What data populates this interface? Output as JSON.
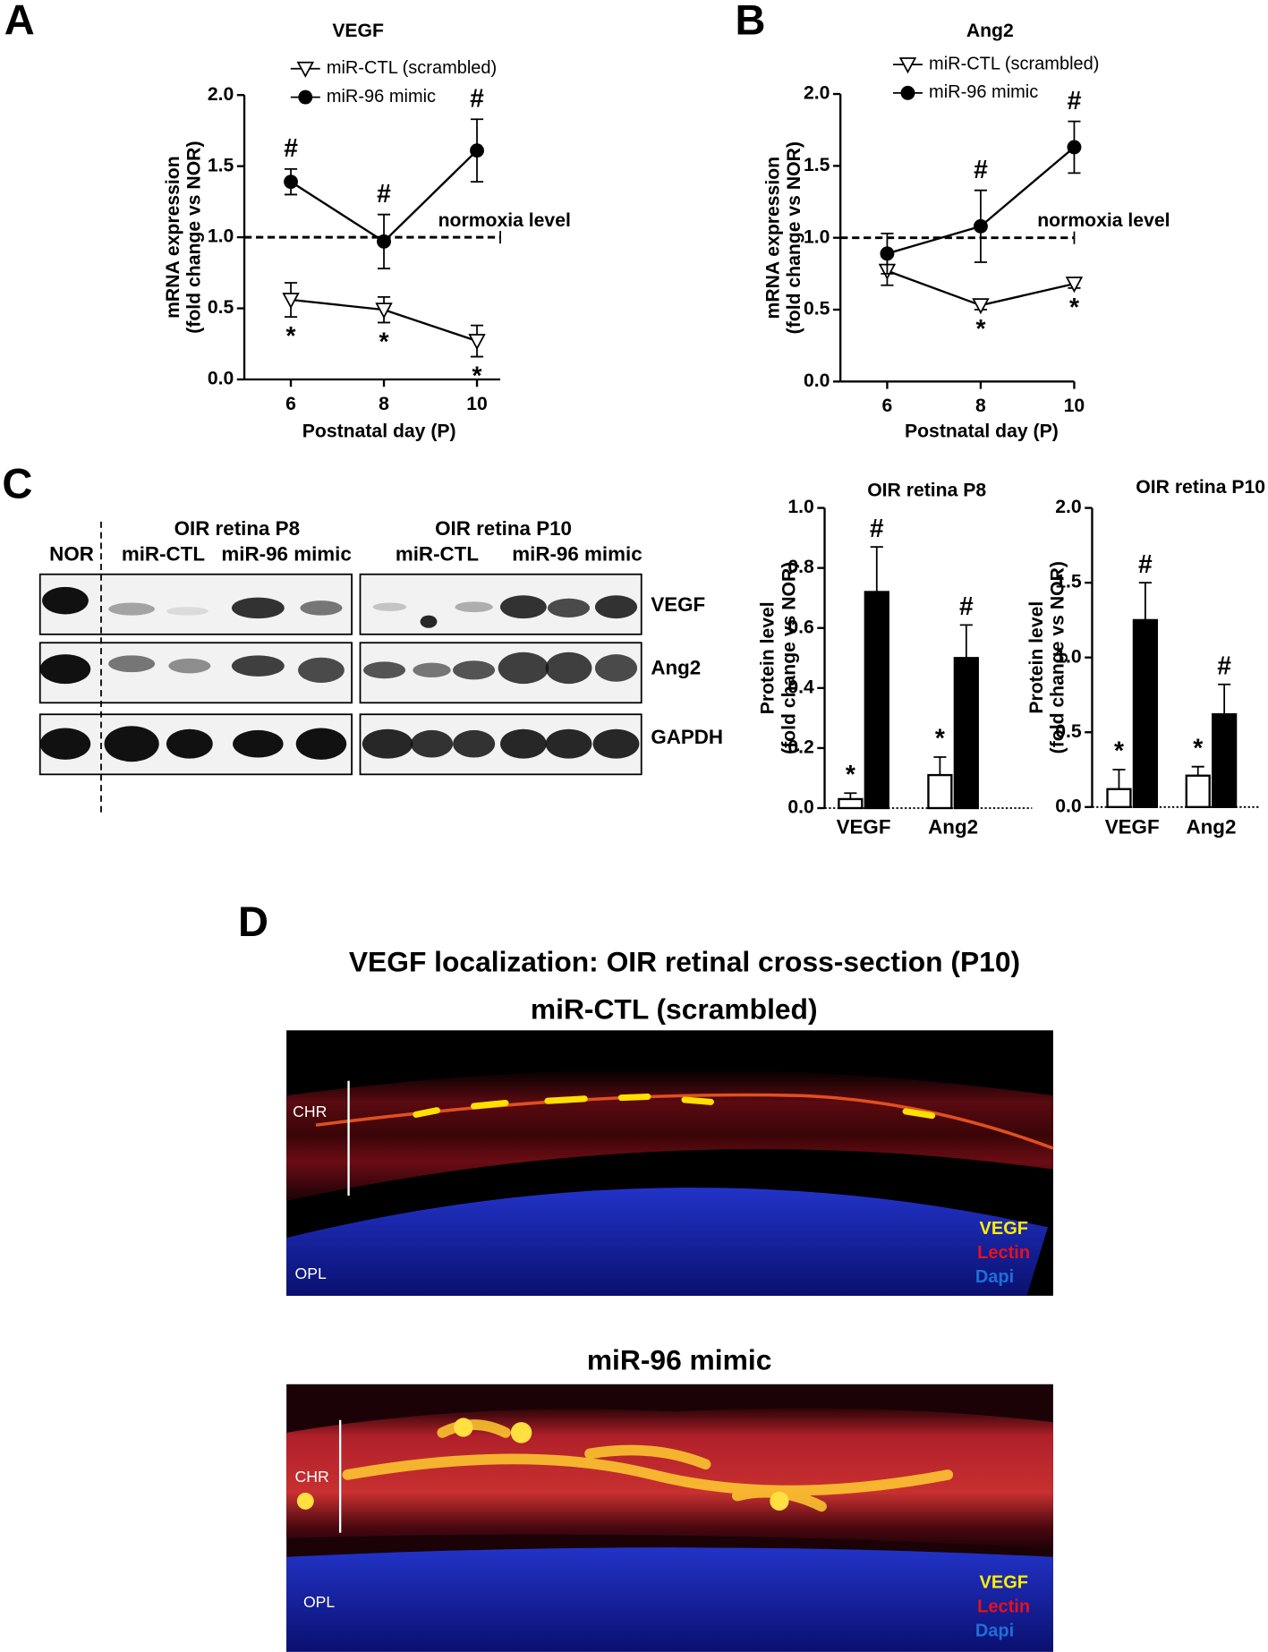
{
  "panel_labels": [
    "A",
    "B",
    "C",
    "D"
  ],
  "chart_data": [
    {
      "type": "line",
      "title": "VEGF",
      "xlabel": "Postnatal day (P)",
      "ylabel": [
        "mRNA expression",
        "(fold change vs NOR)"
      ],
      "x": [
        6,
        8,
        10
      ],
      "xlim": [
        5,
        10.5
      ],
      "xticks": [
        6,
        8,
        10
      ],
      "ylim": [
        0,
        2
      ],
      "yticks": [
        {
          "value": 0,
          "label": "0.0"
        },
        0.5,
        {
          "value": 1,
          "label": "1.0"
        },
        1.5,
        {
          "value": 2,
          "label": "2.0"
        }
      ],
      "reference": {
        "value": 1,
        "label": "normoxia level"
      },
      "series": [
        {
          "name": "miR-CTL (scrambled)",
          "color": "#000000",
          "fill": "#ffffff",
          "marker": "triangle-down",
          "values": [
            0.56,
            0.49,
            0.27
          ],
          "errors": [
            0.12,
            0.09,
            0.11
          ],
          "significance": [
            "*",
            "*",
            "*"
          ]
        },
        {
          "name": "miR-96 mimic",
          "color": "#000000",
          "fill": "#000000",
          "marker": "circle",
          "values": [
            1.39,
            0.97,
            1.61
          ],
          "errors": [
            0.09,
            0.19,
            0.22
          ],
          "significance": [
            "#",
            "#",
            "#"
          ]
        }
      ]
    },
    {
      "type": "line",
      "title": "Ang2",
      "xlabel": "Postnatal day (P)",
      "ylabel": [
        "mRNA expression",
        "(fold change vs NOR)"
      ],
      "x": [
        6,
        8,
        10
      ],
      "xlim": [
        5,
        10
      ],
      "xticks": [
        6,
        8,
        10
      ],
      "ylim": [
        0,
        2
      ],
      "yticks": [
        {
          "value": 0,
          "label": "0.0"
        },
        0.5,
        {
          "value": 1,
          "label": "1.0"
        },
        1.5,
        {
          "value": 2,
          "label": "2.0"
        }
      ],
      "reference": {
        "value": 1,
        "label": "normoxia level"
      },
      "series": [
        {
          "name": "miR-CTL (scrambled)",
          "color": "#000000",
          "fill": "#ffffff",
          "marker": "triangle-down",
          "values": [
            0.77,
            0.53,
            0.68
          ],
          "errors": [
            0.1,
            0.03,
            0.03
          ],
          "significance": [
            null,
            "*",
            "*"
          ]
        },
        {
          "name": "miR-96 mimic",
          "color": "#000000",
          "fill": "#000000",
          "marker": "circle",
          "values": [
            0.89,
            1.08,
            1.63
          ],
          "errors": [
            0.14,
            0.25,
            0.18
          ],
          "significance": [
            null,
            "#",
            "#"
          ]
        }
      ]
    },
    {
      "type": "bar",
      "title": "OIR retina P8",
      "ylabel": [
        "Protein level",
        "(fold change vs NOR)"
      ],
      "categories": [
        "VEGF",
        "Ang2"
      ],
      "ylim": [
        0,
        1
      ],
      "yticks": [
        {
          "value": 0,
          "label": "0.0"
        },
        0.2,
        0.4,
        0.6,
        0.8,
        {
          "value": 1,
          "label": "1.0"
        }
      ],
      "series": [
        {
          "color": "#000000",
          "fill": "#ffffff",
          "values": [
            0.03,
            0.11
          ],
          "errors": [
            0.02,
            0.06
          ],
          "significance": [
            "*",
            "*"
          ]
        },
        {
          "color": "#000000",
          "fill": "#000000",
          "values": [
            0.72,
            0.5
          ],
          "errors": [
            0.15,
            0.11
          ],
          "significance": [
            "#",
            "#"
          ]
        }
      ]
    },
    {
      "type": "bar",
      "title": "OIR retina P10",
      "ylabel": [
        "Protein level",
        "(fold change vs NOR)"
      ],
      "categories": [
        "VEGF",
        "Ang2"
      ],
      "ylim": [
        0,
        2
      ],
      "yticks": [
        {
          "value": 0,
          "label": "0.0"
        },
        0.5,
        {
          "value": 1,
          "label": "1.0"
        },
        1.5,
        {
          "value": 2,
          "label": "2.0"
        }
      ],
      "series": [
        {
          "color": "#000000",
          "fill": "#ffffff",
          "values": [
            0.12,
            0.21
          ],
          "errors": [
            0.13,
            0.06
          ],
          "significance": [
            "*",
            "*"
          ]
        },
        {
          "color": "#000000",
          "fill": "#000000",
          "values": [
            1.25,
            0.62
          ],
          "errors": [
            0.25,
            0.2
          ],
          "significance": [
            "#",
            "#"
          ]
        }
      ]
    }
  ],
  "blot": {
    "nor": "NOR",
    "groups": [
      {
        "title": "OIR retina P8",
        "treatments": [
          "miR-CTL",
          "miR-96 mimic"
        ]
      },
      {
        "title": "OIR retina P10",
        "treatments": [
          "miR-CTL",
          "miR-96 mimic"
        ]
      }
    ],
    "rows": [
      "VEGF",
      "Ang2",
      "GAPDH"
    ]
  },
  "micrographs": {
    "title": "VEGF localization: OIR retinal cross-section (P10)",
    "panels": [
      {
        "title": "miR-CTL (scrambled)",
        "layers": [
          "CHR",
          "OPL"
        ]
      },
      {
        "title": "miR-96 mimic",
        "layers": [
          "CHR",
          "OPL"
        ]
      }
    ],
    "channels": [
      {
        "name": "VEGF",
        "color": "#ffee00"
      },
      {
        "name": "Lectin",
        "color": "#e8101a"
      },
      {
        "name": "Dapi",
        "color": "#1e6fd8"
      }
    ]
  }
}
